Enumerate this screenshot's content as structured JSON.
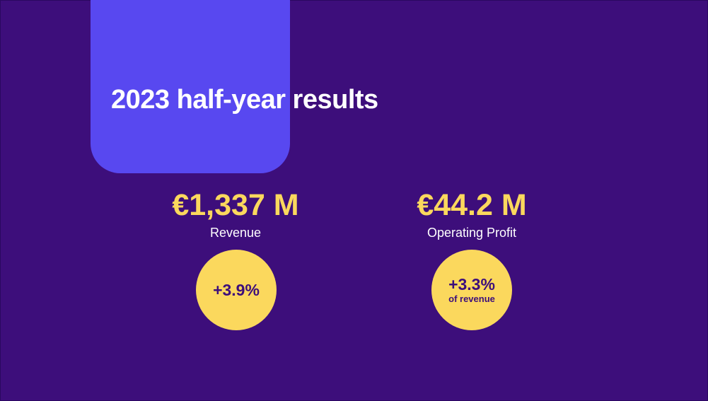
{
  "title": "2023 half-year results",
  "colors": {
    "background": "#3d0e7b",
    "accent_block": "#5848f0",
    "highlight": "#fbd85d",
    "text": "#ffffff"
  },
  "metrics": [
    {
      "value": "€1,337 M",
      "label": "Revenue",
      "badge_value": "+3.9%",
      "badge_sub": ""
    },
    {
      "value": "€44.2 M",
      "label": "Operating Profit",
      "badge_value": "+3.3%",
      "badge_sub": "of revenue"
    }
  ]
}
